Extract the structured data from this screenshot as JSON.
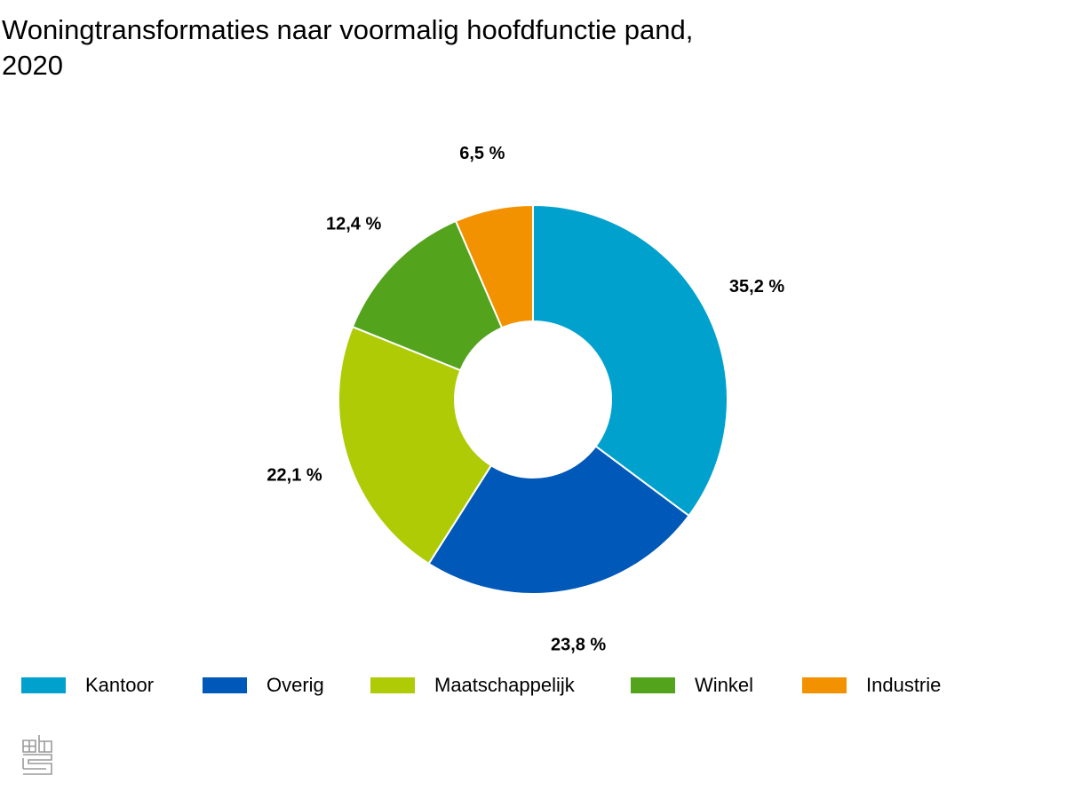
{
  "chart_data": {
    "type": "pie",
    "title": "Woningtransformaties naar voormalig hoofdfunctie pand, 2020",
    "title_lines": [
      "Woningtransformaties naar voormalig hoofdfunctie pand,",
      "2020"
    ],
    "donut": true,
    "unit": "%",
    "categories": [
      "Kantoor",
      "Overig",
      "Maatschappelijk",
      "Winkel",
      "Industrie"
    ],
    "values": [
      35.2,
      23.8,
      22.1,
      12.4,
      6.5
    ],
    "data_labels": [
      "35,2 %",
      "23,8 %",
      "22,1 %",
      "12,4 %",
      "6,5 %"
    ],
    "colors": [
      "#00a1cd",
      "#0058b8",
      "#afcb05",
      "#53a31d",
      "#f39200"
    ],
    "legend_position": "bottom"
  },
  "logo": {
    "name": "cbs-logo"
  }
}
